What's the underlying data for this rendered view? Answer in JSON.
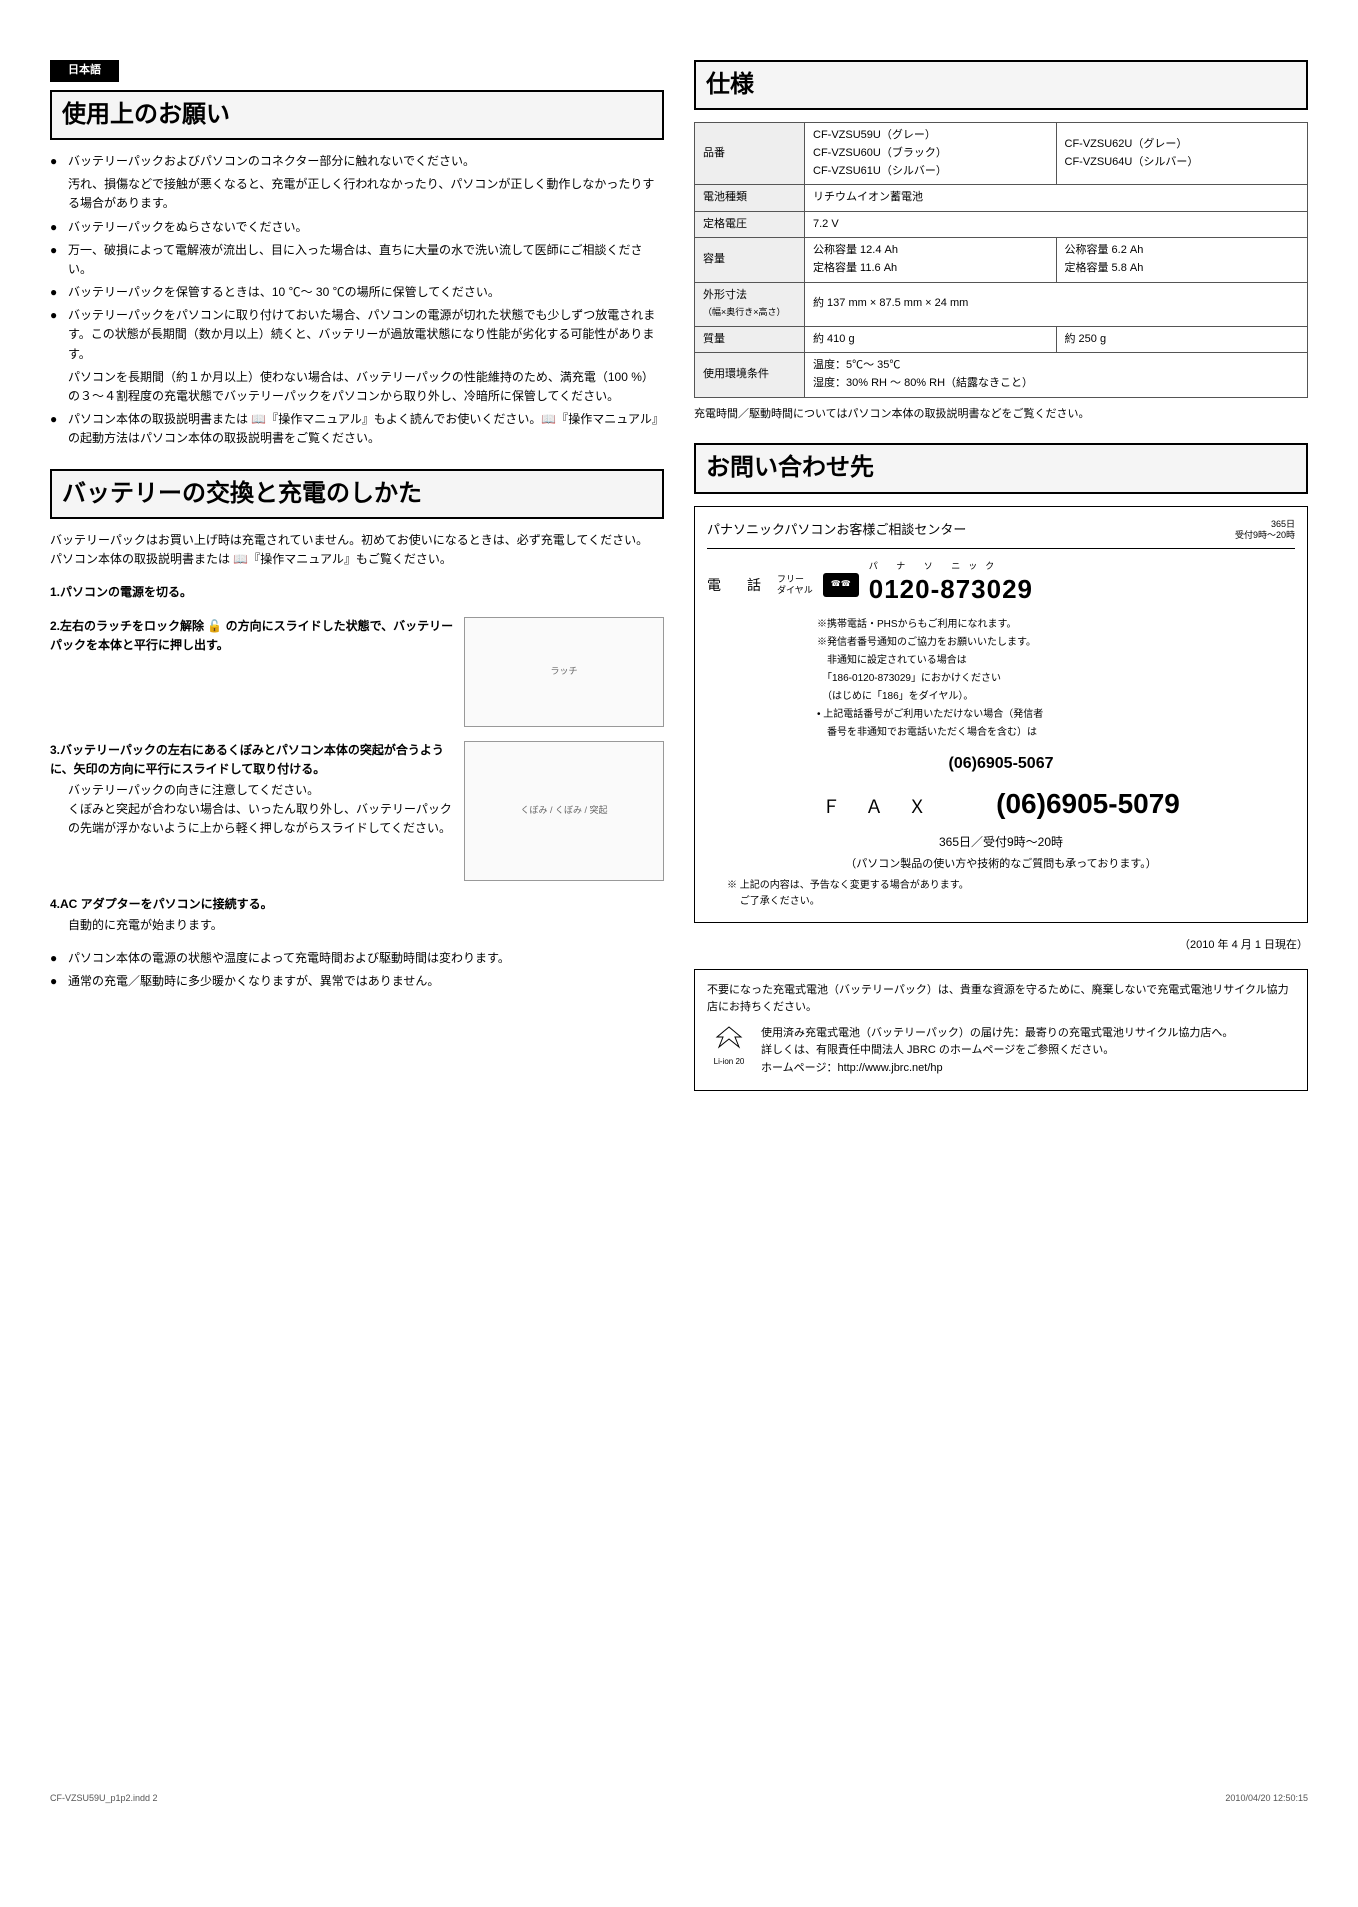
{
  "lang_tag": "日本語",
  "sections": {
    "usage": {
      "title": "使用上のお願い",
      "bullets": [
        {
          "main": "バッテリーパックおよびパソコンのコネクター部分に触れないでください。",
          "sub": "汚れ、損傷などで接触が悪くなると、充電が正しく行われなかったり、パソコンが正しく動作しなかったりする場合があります。"
        },
        {
          "main": "バッテリーパックをぬらさないでください。"
        },
        {
          "main": "万一、破損によって電解液が流出し、目に入った場合は、直ちに大量の水で洗い流して医師にご相談ください。"
        },
        {
          "main": "バッテリーパックを保管するときは、10 ℃～ 30 ℃の場所に保管してください。"
        },
        {
          "main": "バッテリーパックをパソコンに取り付けておいた場合、パソコンの電源が切れた状態でも少しずつ放電されます。この状態が長期間（数か月以上）続くと、バッテリーが過放電状態になり性能が劣化する可能性があります。",
          "sub": "パソコンを長期間（約１か月以上）使わない場合は、バッテリーパックの性能維持のため、満充電（100 %）の３～４割程度の充電状態でバッテリーパックをパソコンから取り外し、冷暗所に保管してください。"
        },
        {
          "main": "パソコン本体の取扱説明書または 📖『操作マニュアル』もよく読んでお使いください。📖『操作マニュアル』の起動方法はパソコン本体の取扱説明書をご覧ください。"
        }
      ]
    },
    "replace": {
      "title": "バッテリーの交換と充電のしかた",
      "intro1": "バッテリーパックはお買い上げ時は充電されていません。初めてお使いになるときは、必ず充電してください。",
      "intro2": "パソコン本体の取扱説明書または 📖『操作マニュアル』もご覧ください。",
      "steps": [
        {
          "num": "1.",
          "title": "パソコンの電源を切る。"
        },
        {
          "num": "2.",
          "title": "左右のラッチをロック解除 🔓 の方向にスライドした状態で、バッテリーパックを本体と平行に押し出す。",
          "label": "ラッチ",
          "illust": "diagram-latch"
        },
        {
          "num": "3.",
          "title": "バッテリーパックの左右にあるくぼみとパソコン本体の突起が合うように、矢印の方向に平行にスライドして取り付ける。",
          "desc": "バッテリーパックの向きに注意してください。\nくぼみと突起が合わない場合は、いったん取り外し、バッテリーパックの先端が浮かないように上から軽く押しながらスライドしてください。",
          "labels": [
            "くぼみ",
            "くぼみ",
            "突起"
          ],
          "illust": "diagram-battery"
        },
        {
          "num": "4.",
          "title": "AC アダプターをパソコンに接続する。",
          "desc": "自動的に充電が始まります。"
        }
      ],
      "notes": [
        "パソコン本体の電源の状態や温度によって充電時間および駆動時間は変わります。",
        "通常の充電／駆動時に多少暖かくなりますが、異常ではありません。"
      ]
    },
    "spec": {
      "title": "仕様",
      "rows": [
        {
          "label": "品番",
          "col1": "CF-VZSU59U（グレー）\nCF-VZSU60U（ブラック）\nCF-VZSU61U（シルバー）",
          "col2": "CF-VZSU62U（グレー）\nCF-VZSU64U（シルバー）"
        },
        {
          "label": "電池種類",
          "col1": "リチウムイオン蓄電池",
          "colspan": true
        },
        {
          "label": "定格電圧",
          "col1": "7.2 V",
          "colspan": true
        },
        {
          "label": "容量",
          "col1": "公称容量 12.4 Ah\n定格容量 11.6 Ah",
          "col2": "公称容量 6.2 Ah\n定格容量 5.8 Ah"
        },
        {
          "label": "外形寸法",
          "sublabel": "（幅×奥行き×高さ）",
          "col1": "約 137 mm × 87.5 mm × 24 mm",
          "colspan": true
        },
        {
          "label": "質量",
          "col1": "約 410 g",
          "col2": "約 250 g"
        },
        {
          "label": "使用環境条件",
          "col1": "温度：5℃～ 35℃\n湿度：30% RH ～ 80% RH（結露なきこと）",
          "colspan": true
        }
      ],
      "note": "充電時間／駆動時間についてはパソコン本体の取扱説明書などをご覧ください。"
    },
    "contact": {
      "title": "お問い合わせ先",
      "center_name": "パナソニックパソコンお客様ご相談センター",
      "center_hours": "365日\n受付9時～20時",
      "phone_label": "電　話",
      "phone_sub": "フリー\nダイヤル",
      "phone_ruby": "パ ナ  ソ ニック",
      "phone_number": "0120-873029",
      "phone_notes": [
        "※携帯電話・PHSからもご利用になれます。",
        "※発信者番号通知のご協力をお願いいたします。",
        "　非通知に設定されている場合は",
        "　「186-0120-873029」におかけください",
        "　（はじめに「186」をダイヤル）。",
        "• 上記電話番号がご利用いただけない場合（発信者",
        "　番号を非通知でお電話いただく場合を含む）は"
      ],
      "alt_phone": "(06)6905-5067",
      "fax_label": "Ｆ Ａ Ｘ",
      "fax_number": "(06)6905-5079",
      "hours": "365日／受付9時～20時",
      "disclaimer": "（パソコン製品の使い方や技術的なご質問も承っております。）",
      "disclaimer2": "※ 上記の内容は、予告なく変更する場合があります。\n　 ご了承ください。",
      "date": "（2010 年 4 月 1 日現在）"
    },
    "recycle": {
      "text1": "不要になった充電式電池（バッテリーパック）は、貴重な資源を守るために、廃棄しないで充電式電池リサイクル協力店にお持ちください。",
      "icon_label": "Li-ion 20",
      "text2": "使用済み充電式電池（バッテリーパック）の届け先：最寄りの充電式電池リサイクル協力店へ。\n詳しくは、有限責任中間法人 JBRC のホームページをご参照ください。\nホームページ：http://www.jbrc.net/hp"
    }
  },
  "footer": {
    "left": "CF-VZSU59U_p1p2.indd   2",
    "right": "2010/04/20   12:50:15"
  }
}
